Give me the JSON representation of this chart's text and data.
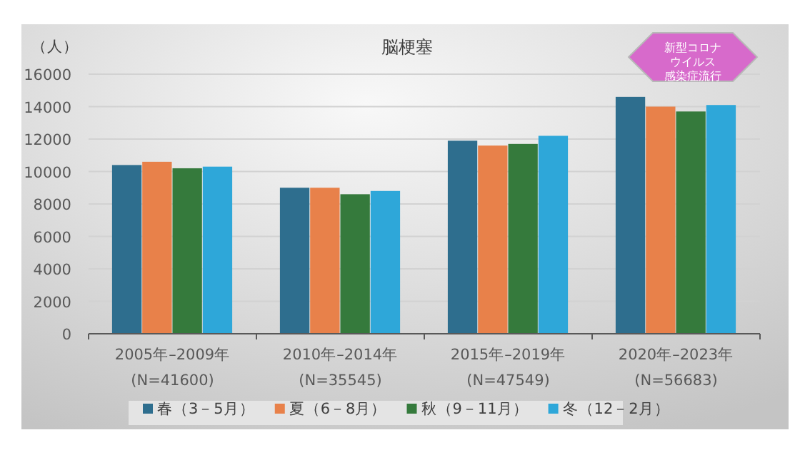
{
  "chart_data": {
    "type": "bar",
    "title": "脳梗塞",
    "ylabel": "（人）",
    "categories": [
      "2005年–2009年\n(N=41600)",
      "2010年–2014年\n(N=35545)",
      "2015年–2019年\n(N=47549)",
      "2020年–2023年\n(N=56683)"
    ],
    "series": [
      {
        "name": "春（3－5月）",
        "color": "#2e6e8e",
        "values": [
          10400,
          9000,
          11900,
          14600
        ]
      },
      {
        "name": "夏（6－8月）",
        "color": "#e8814a",
        "values": [
          10600,
          9000,
          11600,
          14000
        ]
      },
      {
        "name": "秋（9－11月）",
        "color": "#357a3c",
        "values": [
          10200,
          8600,
          11700,
          13700
        ]
      },
      {
        "name": "冬（12－2月）",
        "color": "#2ea7d9",
        "values": [
          10300,
          8800,
          12200,
          14100
        ]
      }
    ],
    "ylim": [
      0,
      16000
    ],
    "yticks": [
      0,
      2000,
      4000,
      6000,
      8000,
      10000,
      12000,
      14000,
      16000
    ],
    "grid": "y",
    "legend": "bottom",
    "annotations": [
      "新型コロナ",
      "ウイルス",
      "感染症流行"
    ]
  }
}
